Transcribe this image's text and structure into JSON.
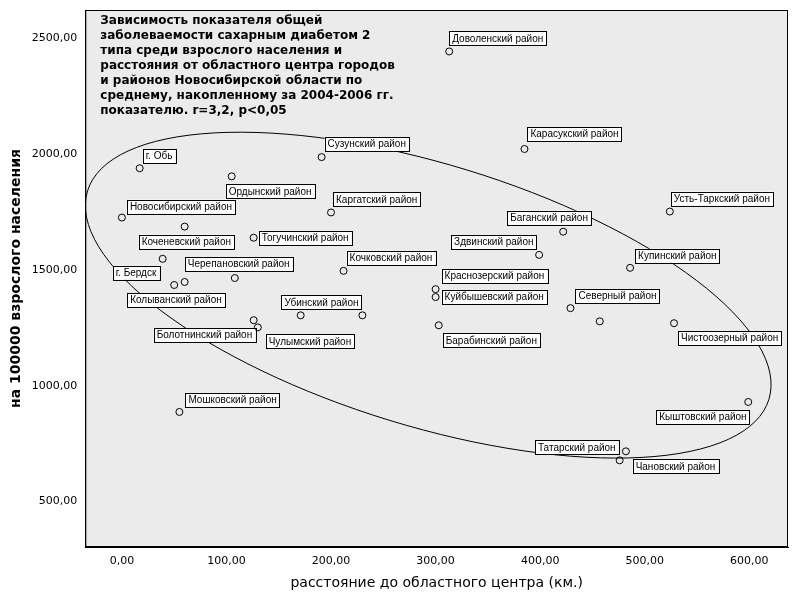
{
  "chart_data": {
    "type": "scatter",
    "title": "Зависимость показателя общей заболеваемости сахарным диабетом 2 типа среди взрослого населения и расстояния от областного центра городов и районов Новосибирской области по среднему, накопленному за 2004-2006 гг. показателю. r=3,2, p<0,05",
    "x_label": "расстояние до областного центра (км.)",
    "y_label": "на 100000 взрослого населения",
    "x": [
      313,
      385,
      524,
      17,
      105,
      191,
      200,
      0,
      60,
      126,
      422,
      399,
      486,
      212,
      39,
      50,
      60,
      108,
      300,
      300,
      303,
      429,
      457,
      528,
      126,
      130,
      171,
      230,
      55,
      599,
      482,
      476
    ],
    "values": [
      2443,
      2022,
      1752,
      1939,
      1904,
      1987,
      1748,
      1726,
      1687,
      1639,
      1665,
      1565,
      1509,
      1496,
      1548,
      1435,
      1448,
      1465,
      1417,
      1383,
      1261,
      1335,
      1278,
      1270,
      1283,
      1252,
      1304,
      1304,
      887,
      930,
      717,
      678
    ],
    "labels": [
      "Доволенский район",
      "Карасукский район",
      "Усть-Таркский район",
      "г. Обь",
      "Ордынский район",
      "Сузунский район",
      "Каргатский район",
      "Новосибирский район",
      "Коченевский район",
      "Тогучинский район",
      "Баганский район",
      "Здвинский район",
      "Купинский район",
      "Кочковский район",
      "г. Бердск",
      "Колыванский район",
      null,
      "Черепановский район",
      "Краснозерский район",
      "Куйбышевский район",
      "Барабинский район",
      "Северный район",
      null,
      "Чистоозерный район",
      "Болотнинский район",
      null,
      "Чулымский район",
      "Убинский район",
      "Мошковский район",
      "Кыштовский район",
      "Татарский район",
      "Чановский район"
    ],
    "color": "#000000",
    "marker": "circle",
    "grid": false,
    "xlim": [
      -35,
      637
    ],
    "ylim": [
      304,
      2622
    ],
    "xticks": [
      {
        "value": 0,
        "label": "0,00"
      },
      {
        "value": 100,
        "label": "100,00"
      },
      {
        "value": 200,
        "label": "200,00"
      },
      {
        "value": 300,
        "label": "300,00"
      },
      {
        "value": 400,
        "label": "400,00"
      },
      {
        "value": 500,
        "label": "500,00"
      },
      {
        "value": 600,
        "label": "600,00"
      }
    ],
    "yticks": [
      {
        "value": 500,
        "label": "500,00"
      },
      {
        "value": 1000,
        "label": "1000,00"
      },
      {
        "value": 1500,
        "label": "1500,00"
      },
      {
        "value": 2000,
        "label": "2000,00"
      },
      {
        "value": 2500,
        "label": "2500,00"
      }
    ]
  }
}
